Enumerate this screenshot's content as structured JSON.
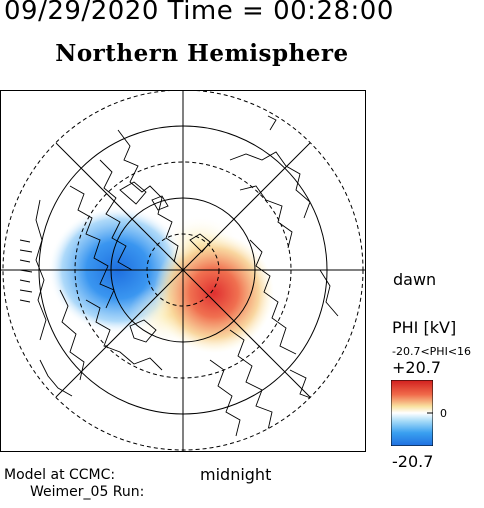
{
  "header": {
    "date": "09/29/2020",
    "time_label": "Time",
    "equals": "=",
    "time": "00:28:00"
  },
  "title": "Northern Hemisphere",
  "labels": {
    "dawn": "dawn",
    "midnight": "midnight"
  },
  "colorbar": {
    "quantity": "PHI [kV]",
    "range_text": "-20.7<PHI<16",
    "max_label": "+20.7",
    "zero_label": "0",
    "min_label": "-20.7",
    "colors": {
      "negative": "#1e78e6",
      "neutral": "#ffffff",
      "positive": "#e61e1e"
    }
  },
  "potential": {
    "min_kv": -20.7,
    "max_kv": 16,
    "negative_cell": "dusk side",
    "positive_cell": "dawn side"
  },
  "credits": {
    "line1": "Model at CCMC:",
    "line2": "Weimer_05 Run:"
  }
}
